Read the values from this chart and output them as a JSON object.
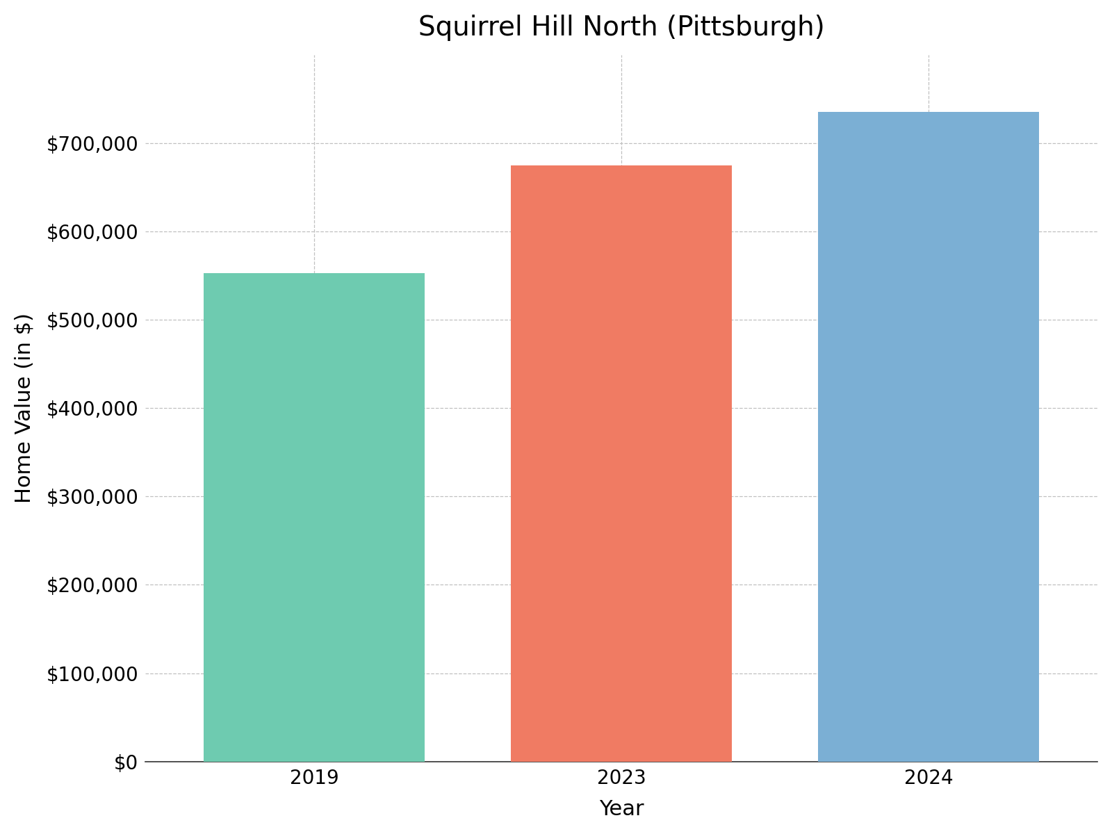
{
  "title": "Squirrel Hill North (Pittsburgh)",
  "categories": [
    "2019",
    "2023",
    "2024"
  ],
  "values": [
    553000,
    675000,
    735000
  ],
  "bar_colors": [
    "#6ecbb0",
    "#f07b63",
    "#7bafd4"
  ],
  "xlabel": "Year",
  "ylabel": "Home Value (in $)",
  "ylim": [
    0,
    800000
  ],
  "yticks": [
    0,
    100000,
    200000,
    300000,
    400000,
    500000,
    600000,
    700000
  ],
  "title_fontsize": 28,
  "label_fontsize": 22,
  "tick_fontsize": 20,
  "background_color": "#ffffff",
  "grid_color": "#c0c0c0",
  "bar_width": 0.72,
  "bar_edge_color": "none"
}
